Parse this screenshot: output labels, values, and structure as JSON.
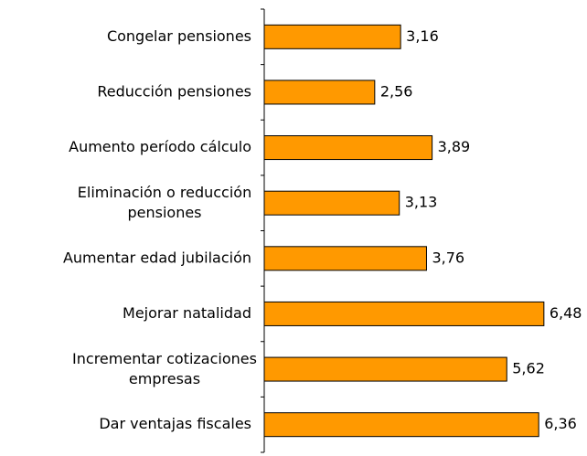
{
  "chart_data": {
    "type": "bar",
    "orientation": "horizontal",
    "categories": [
      "Congelar pensiones",
      "Reducción pensiones",
      "Aumento período cálculo",
      "Eliminación o reducción\npensiones",
      "Aumentar edad  jubilación",
      "Mejorar natalidad",
      "Incrementar cotizaciones\nempresas",
      "Dar ventajas fiscales"
    ],
    "values": [
      3.16,
      2.56,
      3.89,
      3.13,
      3.76,
      6.48,
      5.62,
      6.36
    ],
    "value_labels": [
      "3,16",
      "2,56",
      "3,89",
      "3,13",
      "3,76",
      "6,48",
      "5,62",
      "6,36"
    ],
    "color": "#ff9900",
    "xlim": [
      0,
      7
    ]
  }
}
